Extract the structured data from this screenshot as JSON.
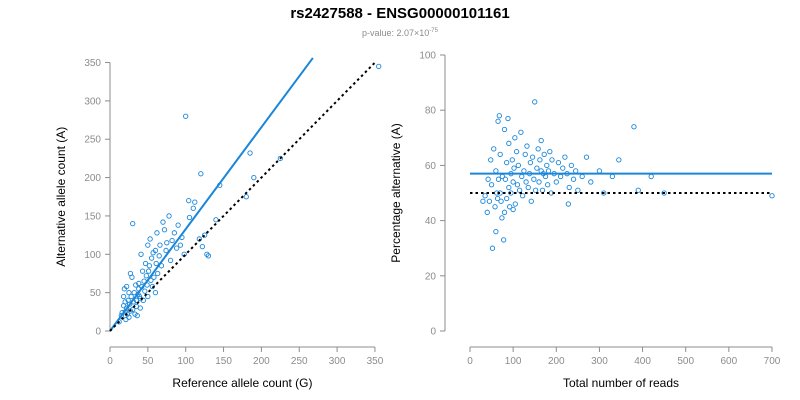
{
  "header": {
    "title": "rs2427588 - ENSG00000101161",
    "pvalue_prefix": "p-value: 2.07×10",
    "pvalue_exponent": "-75"
  },
  "colors": {
    "points": "#1a86d9",
    "fit_line": "#1a86d9",
    "reference_line": "#000000",
    "axis": "#8c8c8c"
  },
  "chart_data": [
    {
      "type": "scatter",
      "title": "",
      "xlabel": "Reference allele count (G)",
      "ylabel": "Alternative allele count (A)",
      "xlim": [
        0,
        358
      ],
      "ylim": [
        0,
        352
      ],
      "x_ticks": [
        0,
        50,
        100,
        150,
        200,
        250,
        300,
        350
      ],
      "y_ticks": [
        0,
        50,
        100,
        150,
        200,
        250,
        300,
        350
      ],
      "grid": false,
      "series": [
        {
          "type": "scatter",
          "x": [
            12,
            15,
            16,
            18,
            18,
            19,
            20,
            20,
            21,
            22,
            22,
            23,
            24,
            25,
            25,
            26,
            27,
            27,
            28,
            29,
            30,
            30,
            31,
            32,
            33,
            34,
            35,
            35,
            36,
            37,
            38,
            38,
            39,
            40,
            40,
            41,
            42,
            43,
            44,
            45,
            46,
            47,
            48,
            49,
            50,
            50,
            51,
            52,
            53,
            54,
            55,
            56,
            57,
            58,
            60,
            60,
            61,
            62,
            63,
            65,
            66,
            68,
            70,
            72,
            74,
            75,
            78,
            80,
            82,
            85,
            88,
            90,
            93,
            95,
            98,
            100,
            104,
            105,
            110,
            112,
            118,
            120,
            122,
            125,
            128,
            130,
            140,
            145,
            180,
            185,
            190,
            225,
            355
          ],
          "y": [
            12,
            20,
            24,
            33,
            45,
            55,
            25,
            38,
            15,
            30,
            58,
            22,
            40,
            50,
            18,
            35,
            75,
            26,
            45,
            70,
            140,
            28,
            38,
            50,
            22,
            60,
            40,
            32,
            20,
            48,
            55,
            62,
            45,
            30,
            42,
            100,
            58,
            78,
            40,
            65,
            52,
            88,
            72,
            60,
            112,
            45,
            78,
            85,
            120,
            66,
            95,
            58,
            102,
            70,
            50,
            105,
            88,
            128,
            75,
            98,
            112,
            85,
            142,
            132,
            105,
            115,
            150,
            92,
            118,
            128,
            108,
            138,
            112,
            122,
            100,
            280,
            170,
            148,
            160,
            168,
            120,
            205,
            110,
            125,
            100,
            98,
            145,
            190,
            175,
            232,
            200,
            225,
            345
          ]
        },
        {
          "type": "line",
          "name": "",
          "x": [
            0,
            268
          ],
          "y": [
            0,
            356
          ]
        },
        {
          "type": "line",
          "name": "",
          "style": "dotted",
          "x": [
            0,
            352
          ],
          "y": [
            0,
            352
          ]
        }
      ]
    },
    {
      "type": "scatter",
      "title": "",
      "xlabel": "Total number of reads",
      "ylabel": "Percentage alternative (A)",
      "xlim": [
        0,
        700
      ],
      "ylim": [
        0,
        100
      ],
      "x_ticks": [
        0,
        100,
        200,
        300,
        400,
        500,
        600,
        700
      ],
      "y_ticks": [
        0,
        20,
        40,
        60,
        80,
        100
      ],
      "grid": false,
      "series": [
        {
          "type": "scatter",
          "x": [
            30,
            35,
            40,
            42,
            45,
            48,
            50,
            52,
            55,
            58,
            60,
            60,
            62,
            64,
            65,
            66,
            68,
            70,
            70,
            72,
            74,
            75,
            78,
            80,
            80,
            82,
            85,
            85,
            88,
            90,
            90,
            92,
            95,
            95,
            98,
            100,
            100,
            102,
            104,
            105,
            108,
            110,
            112,
            115,
            118,
            120,
            122,
            125,
            128,
            130,
            132,
            135,
            138,
            140,
            142,
            145,
            148,
            150,
            152,
            155,
            158,
            160,
            162,
            165,
            165,
            168,
            170,
            172,
            175,
            178,
            180,
            182,
            185,
            188,
            190,
            195,
            200,
            205,
            210,
            215,
            220,
            225,
            228,
            230,
            235,
            240,
            245,
            250,
            260,
            270,
            280,
            300,
            310,
            330,
            345,
            380,
            390,
            420,
            450,
            700
          ],
          "y": [
            47,
            49,
            43,
            55,
            47,
            62,
            53,
            30,
            66,
            45,
            58,
            36,
            50,
            48,
            76,
            55,
            78,
            50,
            64,
            47,
            41,
            56,
            33,
            43,
            73,
            55,
            61,
            48,
            77,
            52,
            68,
            45,
            57,
            50,
            62,
            44,
            54,
            59,
            70,
            46,
            65,
            53,
            60,
            51,
            72,
            56,
            49,
            58,
            64,
            54,
            67,
            52,
            57,
            61,
            47,
            63,
            55,
            83,
            51,
            59,
            66,
            54,
            62,
            58,
            69,
            51,
            57,
            64,
            56,
            60,
            53,
            58,
            65,
            50,
            62,
            57,
            54,
            61,
            56,
            59,
            63,
            57,
            46,
            52,
            60,
            55,
            58,
            51,
            56,
            63,
            54,
            58,
            50,
            56,
            62,
            74,
            51,
            56,
            50,
            49
          ]
        },
        {
          "type": "line",
          "name": "",
          "x": [
            0,
            700
          ],
          "y": [
            57,
            57
          ]
        },
        {
          "type": "line",
          "name": "",
          "style": "dotted",
          "x": [
            0,
            700
          ],
          "y": [
            50,
            50
          ]
        }
      ]
    }
  ]
}
